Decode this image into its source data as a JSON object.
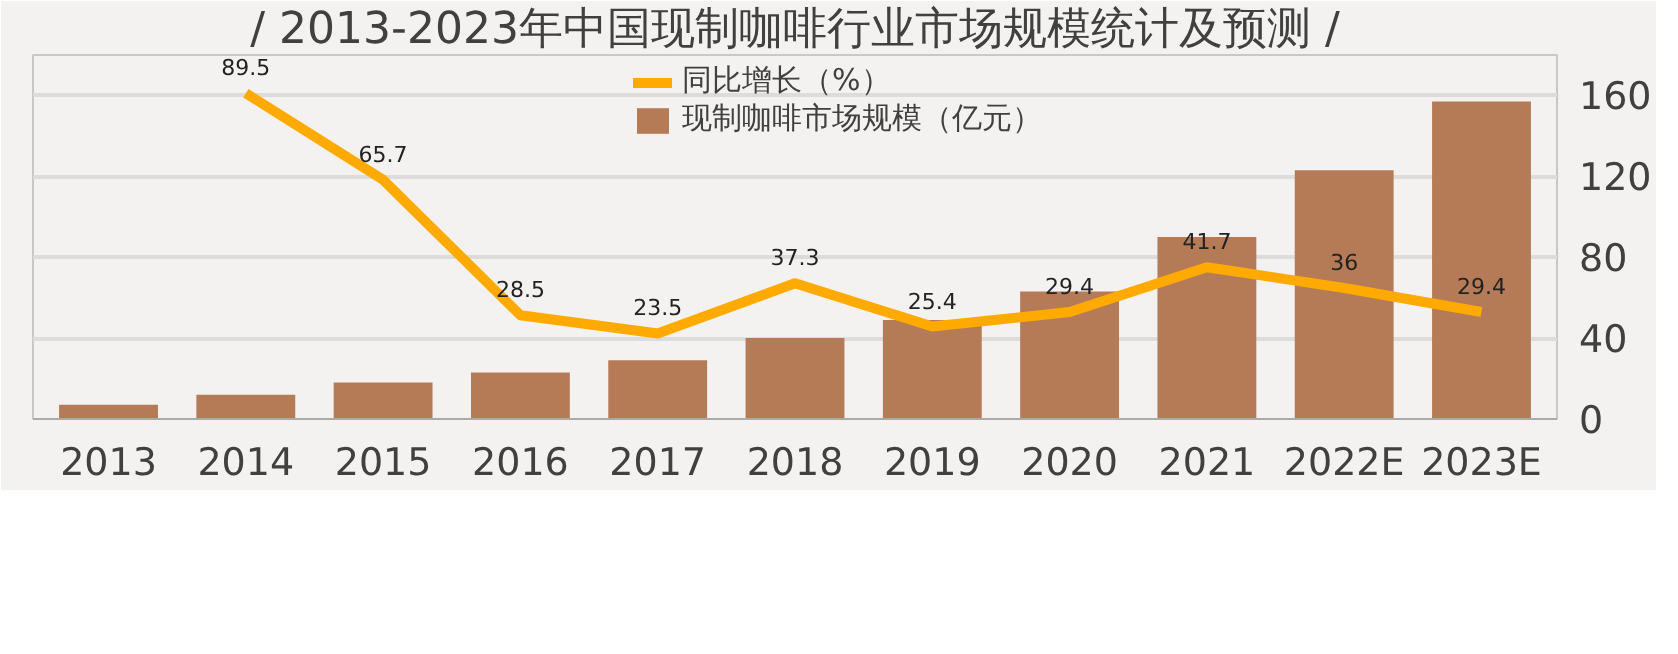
{
  "chart_data": {
    "type": "bar",
    "title": "/ 2013-2023年中国现制咖啡行业市场规模统计及预测 /",
    "categories": [
      "2013",
      "2014",
      "2015",
      "2016",
      "2017",
      "2018",
      "2019",
      "2020",
      "2021",
      "2022E",
      "2023E"
    ],
    "series": [
      {
        "name": "同比增长（%）",
        "type": "line",
        "axis": "y2",
        "color": "#ffaa00",
        "values": [
          null,
          89.5,
          65.7,
          28.5,
          23.5,
          37.3,
          25.4,
          29.4,
          41.7,
          36,
          29.4
        ],
        "value_labels": [
          null,
          "89.5",
          "65.7",
          "28.5",
          "23.5",
          "37.3",
          "25.4",
          "29.4",
          "41.7",
          "36",
          "29.4"
        ]
      },
      {
        "name": "现制咖啡市场规模（亿元）",
        "color": "#b57a56",
        "values": [
          7,
          12,
          18,
          23,
          29,
          40,
          49,
          63,
          90,
          123,
          157
        ]
      }
    ],
    "ylim": [
      0,
      180
    ],
    "yticks": [
      0,
      40,
      80,
      120,
      160
    ],
    "y2lim": [
      0,
      100
    ],
    "grid": "y",
    "legend": "top"
  }
}
